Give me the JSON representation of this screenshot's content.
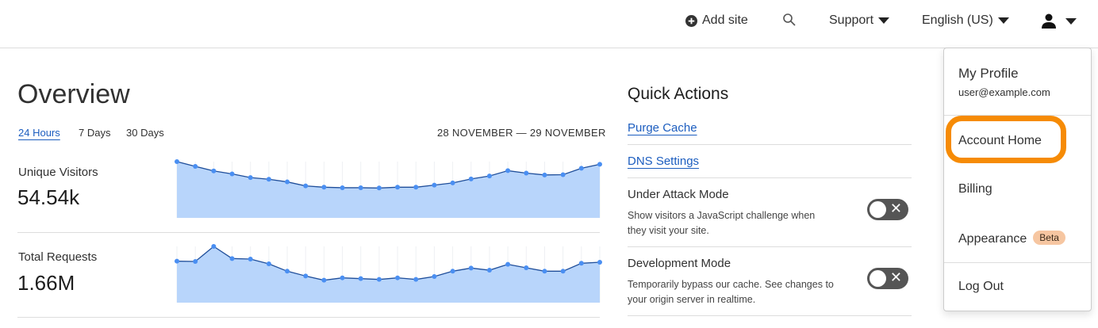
{
  "header": {
    "add_site": "Add site",
    "support": "Support",
    "language": "English (US)"
  },
  "overview": {
    "title": "Overview",
    "tabs": [
      {
        "label": "24 Hours",
        "active": true
      },
      {
        "label": "7 Days",
        "active": false
      },
      {
        "label": "30 Days",
        "active": false
      }
    ],
    "date_range": "28 NOVEMBER — 29 NOVEMBER",
    "metrics": [
      {
        "label": "Unique Visitors",
        "value": "54.54k"
      },
      {
        "label": "Total Requests",
        "value": "1.66M"
      }
    ]
  },
  "chart_data": [
    {
      "type": "area",
      "series": [
        {
          "values": [
            100,
            91.5,
            83.4,
            78.2,
            71.6,
            68.7,
            64.0,
            56.9,
            54.5,
            53.6,
            53.6,
            53.1,
            54.5,
            54.5,
            58.3,
            62.1,
            69.2,
            74.4,
            83.9,
            79.6,
            76.3,
            76.8,
            88.2,
            95.3
          ]
        }
      ],
      "grid": "vertical",
      "colors": {
        "line": "#4a8ff2",
        "fill": "#b8d5fb",
        "stroke": "#1f4e9a"
      }
    },
    {
      "type": "area",
      "series": [
        {
          "values": [
            73.7,
            73.2,
            100,
            78.4,
            77.5,
            69.0,
            55.9,
            47.4,
            39.9,
            44.1,
            42.7,
            41.3,
            44.1,
            41.3,
            46.5,
            55.9,
            61.5,
            57.7,
            68.1,
            62.0,
            55.9,
            55.9,
            70.0,
            71.8
          ]
        }
      ],
      "grid": "vertical",
      "colors": {
        "line": "#4a8ff2",
        "fill": "#b8d5fb",
        "stroke": "#1f4e9a"
      }
    }
  ],
  "quick_actions": {
    "title": "Quick Actions",
    "links": [
      "Purge Cache",
      "DNS Settings"
    ],
    "toggles": [
      {
        "title": "Under Attack Mode",
        "description": "Show visitors a JavaScript challenge when they visit your site.",
        "on": false
      },
      {
        "title": "Development Mode",
        "description": "Temporarily bypass our cache. See changes to your origin server in realtime.",
        "on": false
      }
    ]
  },
  "user_menu": {
    "profile": "My Profile",
    "email": "user@example.com",
    "account_home": "Account Home",
    "billing": "Billing",
    "appearance": "Appearance",
    "appearance_badge": "Beta",
    "logout": "Log Out",
    "highlight_color": "#f68b06"
  }
}
